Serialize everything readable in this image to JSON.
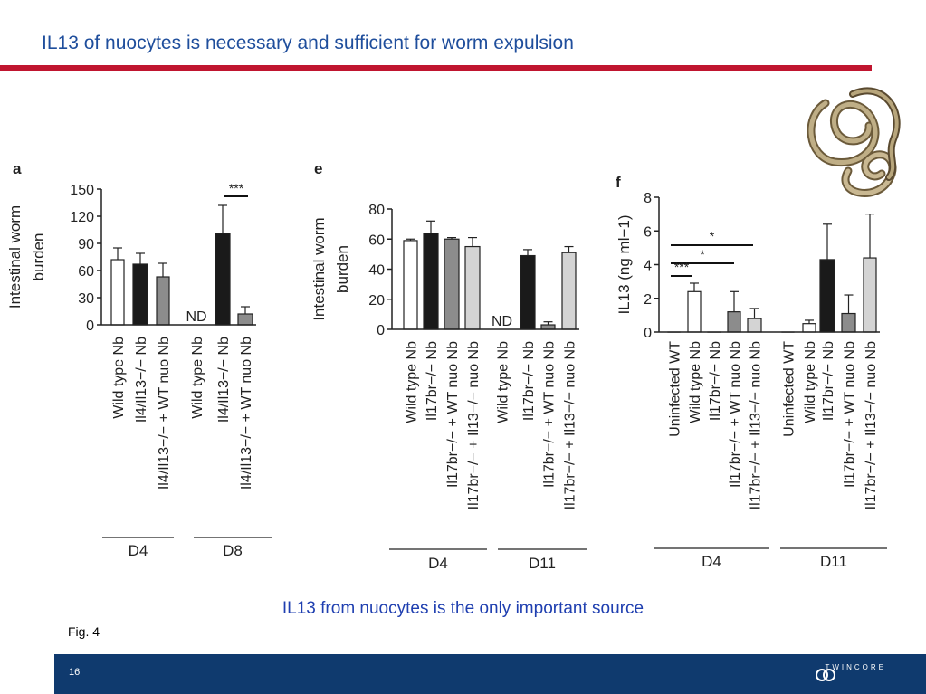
{
  "slide": {
    "title": "IL13 of nuocytes is necessary and sufficient for worm expulsion",
    "caption": "IL13 from nuocytes is the only important source",
    "fig_label": "Fig. 4",
    "page_number": "16",
    "brand": "TWINCORE"
  },
  "colors": {
    "title": "#1f4e9c",
    "rule": "#c0152f",
    "footer": "#0f3a6e",
    "caption": "#1f3fb0"
  },
  "chart_data": [
    {
      "panel": "a",
      "type": "bar",
      "ylabel": [
        "Intestinal worm",
        "burden"
      ],
      "yticks": [
        0,
        30,
        60,
        90,
        120,
        150
      ],
      "ylim": [
        0,
        150
      ],
      "groups": [
        {
          "label": "D4",
          "bars": [
            {
              "label": "Wild type Nb",
              "value": 72,
              "error": 13,
              "fill": "white"
            },
            {
              "label": "Il4/Il13−/− Nb",
              "value": 67,
              "error": 12,
              "fill": "black"
            },
            {
              "label": "Il4/Il13−/− + WT nuo Nb",
              "value": 53,
              "error": 15,
              "fill": "gray"
            }
          ]
        },
        {
          "label": "D8",
          "bars": [
            {
              "label": "Wild type Nb",
              "value": null,
              "annotation": "ND",
              "fill": "white"
            },
            {
              "label": "Il4/Il13−/− Nb",
              "value": 101,
              "error": 31,
              "fill": "black"
            },
            {
              "label": "Il4/Il13−/− + WT nuo Nb",
              "value": 12,
              "error": 8,
              "fill": "gray"
            }
          ]
        }
      ],
      "significance": [
        {
          "text": "***"
        }
      ]
    },
    {
      "panel": "e",
      "type": "bar",
      "ylabel": [
        "Intestinal worm",
        "burden"
      ],
      "yticks": [
        0,
        20,
        40,
        60,
        80
      ],
      "ylim": [
        0,
        80
      ],
      "groups": [
        {
          "label": "D4",
          "bars": [
            {
              "label": "Wild type Nb",
              "value": 59,
              "error": 1,
              "fill": "white"
            },
            {
              "label": "Il17br−/− Nb",
              "value": 64,
              "error": 8,
              "fill": "black"
            },
            {
              "label": "Il17br−/− + WT nuo Nb",
              "value": 60,
              "error": 1,
              "fill": "gray"
            },
            {
              "label": "Il17br−/− + Il13−/− nuo Nb",
              "value": 55,
              "error": 6,
              "fill": "lightgray"
            }
          ]
        },
        {
          "label": "D11",
          "bars": [
            {
              "label": "Wild type Nb",
              "value": null,
              "annotation": "ND",
              "fill": "white"
            },
            {
              "label": "Il17br−/− Nb",
              "value": 49,
              "error": 4,
              "fill": "black"
            },
            {
              "label": "Il17br−/− + WT nuo Nb",
              "value": 3,
              "error": 2,
              "fill": "gray"
            },
            {
              "label": "Il17br−/− + Il13−/− nuo Nb",
              "value": 51,
              "error": 4,
              "fill": "lightgray"
            }
          ]
        }
      ]
    },
    {
      "panel": "f",
      "type": "bar",
      "ylabel": [
        "IL13 (ng ml−1)"
      ],
      "yticks": [
        0,
        2,
        4,
        6,
        8
      ],
      "ylim": [
        0,
        8
      ],
      "groups": [
        {
          "label": "D4",
          "bars": [
            {
              "label": "Uninfected WT",
              "value": 0,
              "error": 0,
              "fill": "white"
            },
            {
              "label": "Wild type Nb",
              "value": 2.4,
              "error": 0.5,
              "fill": "white"
            },
            {
              "label": "Il17br−/− Nb",
              "value": 0,
              "error": 0,
              "fill": "black"
            },
            {
              "label": "Il17br−/− + WT nuo Nb",
              "value": 1.2,
              "error": 1.2,
              "fill": "gray"
            },
            {
              "label": "Il17br−/− + Il13−/− nuo Nb",
              "value": 0.8,
              "error": 0.6,
              "fill": "lightgray"
            }
          ]
        },
        {
          "label": "D11",
          "bars": [
            {
              "label": "Uninfected WT",
              "value": 0,
              "error": 0,
              "fill": "white"
            },
            {
              "label": "Wild type Nb",
              "value": 0.5,
              "error": 0.2,
              "fill": "white"
            },
            {
              "label": "Il17br−/− Nb",
              "value": 4.3,
              "error": 2.1,
              "fill": "black"
            },
            {
              "label": "Il17br−/− + WT nuo Nb",
              "value": 1.1,
              "error": 1.1,
              "fill": "gray"
            },
            {
              "label": "Il17br−/− + Il13−/− nuo Nb",
              "value": 4.4,
              "error": 2.6,
              "fill": "lightgray"
            }
          ]
        }
      ],
      "significance": [
        {
          "text": "*"
        },
        {
          "text": "*"
        },
        {
          "text": "***"
        }
      ]
    }
  ]
}
